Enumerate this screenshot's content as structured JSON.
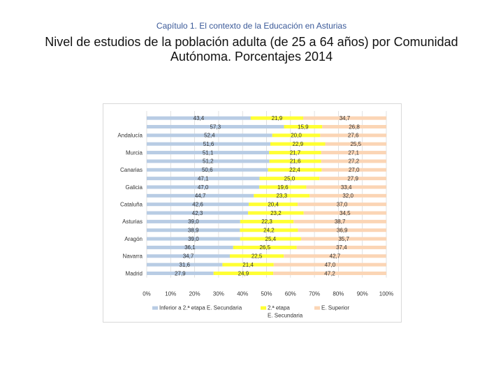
{
  "header": {
    "chapter": "Capítulo 1. El contexto de la Educación en Asturias",
    "title": "Nivel de estudios de la población adulta (de 25 a 64 años) por Comunidad Autónoma. Porcentajes 2014"
  },
  "chart_data": {
    "type": "bar",
    "stacked": true,
    "orientation": "horizontal",
    "title": "",
    "xlabel": "",
    "ylabel": "",
    "xlim": [
      0,
      100
    ],
    "x_ticks": [
      "0%",
      "10%",
      "20%",
      "30%",
      "40%",
      "50%",
      "60%",
      "70%",
      "80%",
      "90%",
      "100%"
    ],
    "categories": [
      "",
      "",
      "Andalucía",
      "",
      "Murcia",
      "",
      "Canarias",
      "",
      "Galicia",
      "",
      "Cataluña",
      "",
      "Asturias",
      "",
      "Aragón",
      "",
      "Navarra",
      "",
      "Madrid"
    ],
    "series": [
      {
        "name": "Inferior a 2.ª etapa E. Secundaria",
        "color": "#b8cce4",
        "values": [
          43.4,
          57.3,
          52.4,
          51.6,
          51.1,
          51.2,
          50.6,
          47.1,
          47.0,
          44.7,
          42.6,
          42.3,
          39.0,
          38.9,
          39.0,
          36.1,
          34.7,
          31.6,
          27.9
        ]
      },
      {
        "name": "2.ª etapa E. Secundaria",
        "color": "#ffff33",
        "values": [
          21.9,
          15.9,
          20.0,
          22.9,
          21.7,
          21.6,
          22.4,
          25.0,
          19.6,
          23.3,
          20.4,
          23.2,
          22.3,
          24.2,
          25.4,
          26.5,
          22.5,
          21.4,
          24.9
        ]
      },
      {
        "name": "E. Superior",
        "color": "#fbd5b5",
        "values": [
          34.7,
          26.8,
          27.6,
          25.5,
          27.1,
          27.2,
          27.0,
          27.9,
          33.4,
          32.0,
          37.0,
          34.5,
          38.7,
          36.9,
          35.7,
          37.4,
          42.7,
          47.0,
          47.2
        ]
      }
    ],
    "value_labels": [
      [
        "43,4",
        "21,9",
        "34,7"
      ],
      [
        "57,3",
        "15,9",
        "26,8"
      ],
      [
        "52,4",
        "20,0",
        "27,6"
      ],
      [
        "51,6",
        "22,9",
        "25,5"
      ],
      [
        "51,1",
        "21,7",
        "27,1"
      ],
      [
        "51,2",
        "21,6",
        "27,2"
      ],
      [
        "50,6",
        "22,4",
        "27,0"
      ],
      [
        "47,1",
        "25,0",
        "27,9"
      ],
      [
        "47,0",
        "19,6",
        "33,4"
      ],
      [
        "44,7",
        "23,3",
        "32,0"
      ],
      [
        "42,6",
        "20,4",
        "37,0"
      ],
      [
        "42,3",
        "23,2",
        "34,5"
      ],
      [
        "39,0",
        "22,3",
        "38,7"
      ],
      [
        "38,9",
        "24,2",
        "36,9"
      ],
      [
        "39,0",
        "25,4",
        "35,7"
      ],
      [
        "36,1",
        "26,5",
        "37,4"
      ],
      [
        "34,7",
        "22,5",
        "42,7"
      ],
      [
        "31,6",
        "21,4",
        "47,0"
      ],
      [
        "27,9",
        "24,9",
        "47,2"
      ]
    ],
    "legend": {
      "position": "bottom",
      "entries": [
        "Inferior a 2.ª etapa E. Secundaria",
        "2.ª etapa",
        "E. Secundaria",
        "E. Superior"
      ]
    }
  }
}
